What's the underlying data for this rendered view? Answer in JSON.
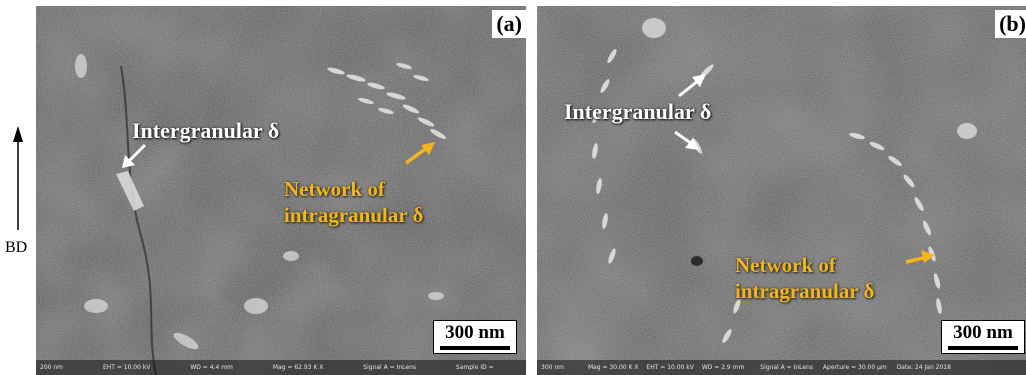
{
  "build_direction": {
    "label": "BD"
  },
  "panels": [
    {
      "id": "a",
      "label": "(a)",
      "annotations": {
        "intergranular": "Intergranular δ",
        "network_line1": "Network of",
        "network_line2": "intragranular δ"
      },
      "scale_bar": "300 nm",
      "sem_databar": {
        "micron_marker": "200 nm",
        "eht": "EHT = 10.00 kV",
        "wd": "WD = 4.4 mm",
        "mag": "Mag = 62.93 K X",
        "signal": "Signal A = InLens",
        "sample": "Sample ID ="
      }
    },
    {
      "id": "b",
      "label": "(b)",
      "annotations": {
        "intergranular": "Intergranular δ",
        "network_line1": "Network of",
        "network_line2": "intragranular δ"
      },
      "scale_bar": "300 nm",
      "sem_databar": {
        "micron_marker": "300 nm",
        "mag": "Mag = 30.00 K X",
        "eht": "EHT = 10.00 kV",
        "wd": "WD = 2.9 mm",
        "signal": "Signal A = InLens",
        "aperture": "Aperture = 30.00 μm",
        "date": "Date: 24 Jan 2018"
      }
    }
  ],
  "colors": {
    "annotation_white": "#ffffff",
    "annotation_gold": "#f2b51c",
    "sem_background": "#4a4a4a"
  }
}
